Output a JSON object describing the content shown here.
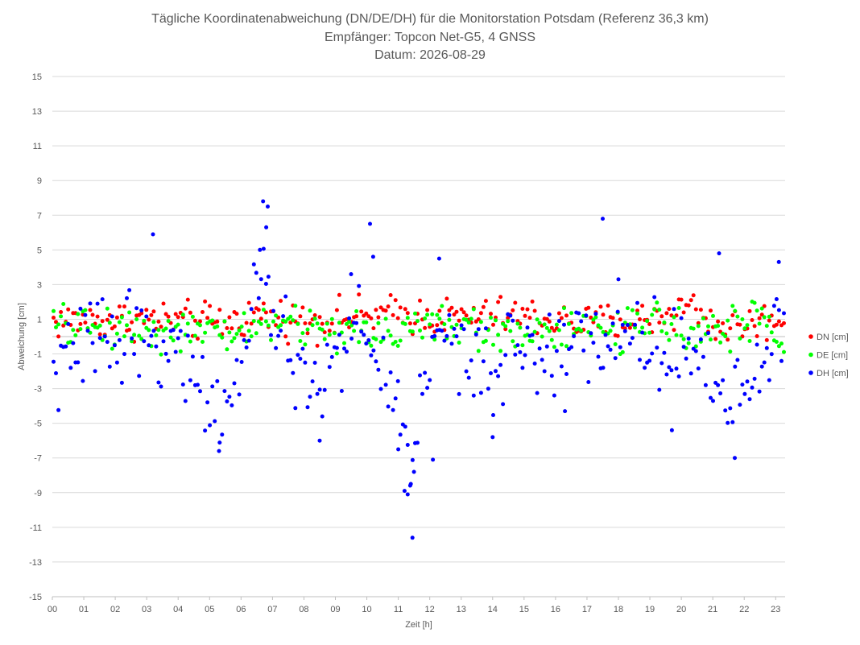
{
  "chart_data": {
    "type": "scatter",
    "title": [
      "Tägliche Koordinatenabweichung (DN/DE/DH) für die Monitorstation Potsdam (Referenz 36,3 km)",
      "Empfänger: Topcon Net-G5, 4 GNSS",
      "Datum: 2026-08-29"
    ],
    "xlabel": "Zeit [h]",
    "ylabel": "Abweichung [cm]",
    "xlim": [
      0,
      23.3
    ],
    "ylim": [
      -15,
      15
    ],
    "x_ticks": [
      0,
      1,
      2,
      3,
      4,
      5,
      6,
      7,
      8,
      9,
      10,
      11,
      12,
      13,
      14,
      15,
      16,
      17,
      18,
      19,
      20,
      21,
      22,
      23
    ],
    "x_tick_labels": [
      "00",
      "01",
      "02",
      "03",
      "04",
      "05",
      "06",
      "07",
      "08",
      "09",
      "10",
      "11",
      "12",
      "13",
      "14",
      "15",
      "16",
      "17",
      "18",
      "19",
      "20",
      "21",
      "22",
      "23"
    ],
    "y_ticks": [
      -15,
      -13,
      -11,
      -9,
      -7,
      -5,
      -3,
      -1,
      1,
      3,
      5,
      7,
      9,
      11,
      13,
      15
    ],
    "y_tick_labels": [
      "-15",
      "-13",
      "-11",
      "-9",
      "-7",
      "-5",
      "-3",
      "-1",
      "1",
      "3",
      "5",
      "7",
      "9",
      "11",
      "13",
      "15"
    ],
    "grid": "horizontal",
    "legend_position": "right",
    "series": [
      {
        "name": "DN [cm]",
        "color": "#ff0000",
        "center": [
          [
            0,
            0.9
          ],
          [
            3,
            1.0
          ],
          [
            5.5,
            0.8
          ],
          [
            6.6,
            1.3
          ],
          [
            8,
            0.9
          ],
          [
            11,
            1.3
          ],
          [
            13,
            1.1
          ],
          [
            15,
            1.2
          ],
          [
            17,
            0.7
          ],
          [
            19,
            1.0
          ],
          [
            20.3,
            1.8
          ],
          [
            21.2,
            0.5
          ],
          [
            23.2,
            1.0
          ]
        ],
        "spread": 0.55
      },
      {
        "name": "DE [cm]",
        "color": "#00ff00",
        "center": [
          [
            0,
            0.6
          ],
          [
            3,
            0.5
          ],
          [
            5.5,
            0.0
          ],
          [
            6.6,
            0.8
          ],
          [
            8,
            0.6
          ],
          [
            10,
            0.2
          ],
          [
            12,
            0.7
          ],
          [
            14,
            0.3
          ],
          [
            16,
            0.3
          ],
          [
            18,
            0.4
          ],
          [
            20.3,
            0.7
          ],
          [
            21.2,
            0.3
          ],
          [
            22.5,
            1.0
          ],
          [
            23.2,
            -0.3
          ]
        ],
        "spread": 0.6
      },
      {
        "name": "DH [cm]",
        "color": "#0000ff",
        "center": [
          [
            0,
            -2.2
          ],
          [
            0.5,
            -1.3
          ],
          [
            1.5,
            0.2
          ],
          [
            2.5,
            0.3
          ],
          [
            3.5,
            -0.4
          ],
          [
            4.5,
            -2.0
          ],
          [
            5.3,
            -4.8
          ],
          [
            6,
            -2.0
          ],
          [
            6.7,
            3.5
          ],
          [
            7.5,
            -1.2
          ],
          [
            8.3,
            -3.0
          ],
          [
            9,
            -1.5
          ],
          [
            9.7,
            1.0
          ],
          [
            10.4,
            -1.8
          ],
          [
            11,
            -4.0
          ],
          [
            11.4,
            -6.5
          ],
          [
            12,
            -1.5
          ],
          [
            12.7,
            0.8
          ],
          [
            13.3,
            -2.0
          ],
          [
            14,
            -2.5
          ],
          [
            15,
            0.0
          ],
          [
            15.8,
            -1.5
          ],
          [
            16.5,
            0.0
          ],
          [
            17.5,
            -0.3
          ],
          [
            18,
            0.6
          ],
          [
            19,
            -0.8
          ],
          [
            20,
            -0.2
          ],
          [
            20.7,
            -1.2
          ],
          [
            21.2,
            -3.5
          ],
          [
            21.6,
            -3.8
          ],
          [
            22.4,
            -2.0
          ],
          [
            23,
            0.4
          ],
          [
            23.2,
            0.8
          ]
        ],
        "spread": 1.2,
        "outliers": [
          [
            3.2,
            5.9
          ],
          [
            6.7,
            7.8
          ],
          [
            6.85,
            7.5
          ],
          [
            6.8,
            6.3
          ],
          [
            6.6,
            5.0
          ],
          [
            10.1,
            6.5
          ],
          [
            10.2,
            4.6
          ],
          [
            9.5,
            3.6
          ],
          [
            12.3,
            4.5
          ],
          [
            17.5,
            6.8
          ],
          [
            18,
            3.3
          ],
          [
            21.2,
            4.8
          ],
          [
            23.1,
            4.3
          ],
          [
            11.45,
            -11.6
          ],
          [
            11.3,
            -9.1
          ],
          [
            11.2,
            -8.9
          ],
          [
            11.4,
            -8.5
          ],
          [
            11.5,
            -7.8
          ],
          [
            12.1,
            -7.1
          ],
          [
            21.7,
            -7.0
          ],
          [
            5.3,
            -6.6
          ],
          [
            8.5,
            -6.0
          ],
          [
            11.0,
            -6.5
          ],
          [
            16.3,
            -4.3
          ],
          [
            19.7,
            -5.4
          ],
          [
            14.0,
            -5.8
          ]
        ]
      }
    ],
    "dot_count_per_series": 300
  }
}
